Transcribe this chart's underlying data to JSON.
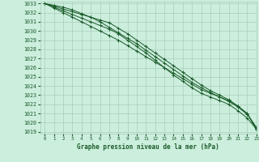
{
  "title": "Graphe pression niveau de la mer (hPa)",
  "bg_color": "#cceedd",
  "grid_color": "#aaccbb",
  "line_color": "#1a5c2a",
  "xlim": [
    -0.5,
    23
  ],
  "ylim": [
    1018.8,
    1033.2
  ],
  "yticks": [
    1019,
    1020,
    1021,
    1022,
    1023,
    1024,
    1025,
    1026,
    1027,
    1028,
    1029,
    1030,
    1031,
    1032,
    1033
  ],
  "xticks": [
    0,
    1,
    2,
    3,
    4,
    5,
    6,
    7,
    8,
    9,
    10,
    11,
    12,
    13,
    14,
    15,
    16,
    17,
    18,
    19,
    20,
    21,
    22,
    23
  ],
  "series": [
    [
      1033.0,
      1032.7,
      1032.4,
      1032.1,
      1031.8,
      1031.5,
      1031.2,
      1030.9,
      1030.3,
      1029.7,
      1029.0,
      1028.3,
      1027.6,
      1026.9,
      1026.2,
      1025.5,
      1024.8,
      1024.1,
      1023.5,
      1023.0,
      1022.5,
      1021.8,
      1021.0,
      1019.2
    ],
    [
      1033.0,
      1032.6,
      1032.2,
      1031.8,
      1031.4,
      1031.0,
      1030.6,
      1030.2,
      1029.7,
      1029.0,
      1028.3,
      1027.6,
      1026.8,
      1026.0,
      1025.2,
      1024.5,
      1023.8,
      1023.2,
      1022.8,
      1022.4,
      1022.0,
      1021.3,
      1020.5,
      1019.3
    ],
    [
      1033.0,
      1032.5,
      1032.0,
      1031.5,
      1031.0,
      1030.5,
      1030.0,
      1029.5,
      1029.0,
      1028.4,
      1027.8,
      1027.2,
      1026.6,
      1026.0,
      1025.4,
      1024.8,
      1024.2,
      1023.6,
      1023.2,
      1022.8,
      1022.4,
      1021.8,
      1021.0,
      1019.4
    ],
    [
      1033.0,
      1032.8,
      1032.6,
      1032.3,
      1031.9,
      1031.5,
      1031.0,
      1030.4,
      1029.8,
      1029.2,
      1028.6,
      1027.9,
      1027.2,
      1026.5,
      1025.8,
      1025.1,
      1024.4,
      1023.8,
      1023.3,
      1022.8,
      1022.3,
      1021.7,
      1020.9,
      1019.5
    ]
  ]
}
